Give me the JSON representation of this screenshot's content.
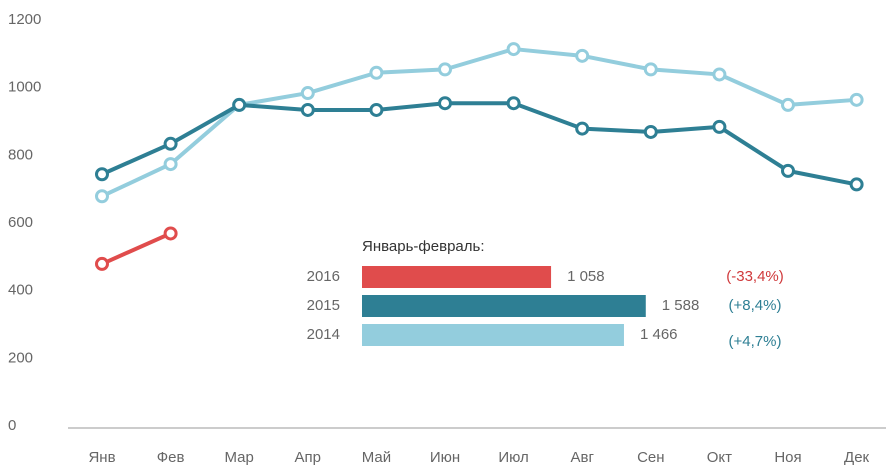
{
  "chart_data": [
    {
      "type": "line",
      "categories": [
        "Янв",
        "Фев",
        "Мар",
        "Апр",
        "Май",
        "Июн",
        "Июл",
        "Авг",
        "Сен",
        "Окт",
        "Ноя",
        "Дек"
      ],
      "series": [
        {
          "color": "#93cddd",
          "values": [
            685,
            780,
            955,
            990,
            1050,
            1060,
            1120,
            1100,
            1060,
            1045,
            955,
            970
          ]
        },
        {
          "color": "#2e7f94",
          "values": [
            750,
            840,
            955,
            940,
            940,
            960,
            960,
            885,
            875,
            890,
            760,
            720
          ]
        },
        {
          "color": "#e04c4c",
          "values": [
            485,
            575,
            null,
            null,
            null,
            null,
            null,
            null,
            null,
            null,
            null,
            null
          ]
        }
      ],
      "ylim": [
        0,
        1200
      ],
      "yticks": [
        0,
        200,
        400,
        600,
        800,
        1000,
        1200
      ]
    },
    {
      "type": "hbar",
      "title": "Январь-февраль:",
      "categories": [
        "2016",
        "2015",
        "2014"
      ],
      "values": [
        1058,
        1588,
        1466
      ],
      "value_labels": [
        "1 058",
        "1 588",
        "1 466"
      ],
      "colors": [
        "#e04c4c",
        "#2e7f94",
        "#93cddd"
      ],
      "annotations": [
        {
          "text": "(-33,4%)",
          "color": "#d0393b"
        },
        {
          "text": "(+8,4%)",
          "color": "#2e7f94"
        },
        {
          "text": "(+4,7%)",
          "color": "#2e7f94"
        }
      ]
    }
  ]
}
